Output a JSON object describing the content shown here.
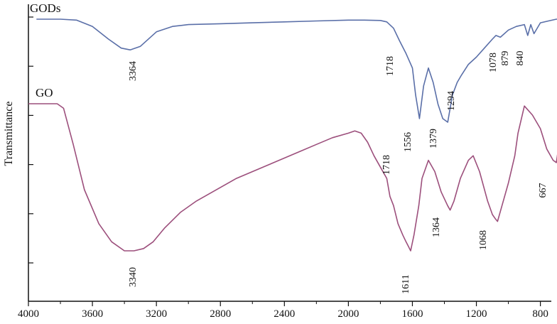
{
  "chart_data": {
    "type": "line",
    "title": "",
    "xlabel": "",
    "ylabel": "Transmittance",
    "xlim": [
      4000,
      650
    ],
    "x_reversed": true,
    "x_ticks": [
      "4000",
      "3600",
      "3200",
      "2800",
      "2400",
      "2000",
      "1600",
      "1200",
      "800"
    ],
    "x_tick_values": [
      4000,
      3600,
      3200,
      2800,
      2400,
      2000,
      1600,
      1200,
      800
    ],
    "y_tick_count": 6,
    "grid": false,
    "series": [
      {
        "name": "GODs",
        "color": "#5a6fa8",
        "x": [
          3950,
          3800,
          3700,
          3600,
          3500,
          3420,
          3364,
          3300,
          3200,
          3100,
          3000,
          2800,
          2600,
          2400,
          2200,
          2000,
          1900,
          1800,
          1760,
          1718,
          1680,
          1640,
          1600,
          1580,
          1556,
          1530,
          1500,
          1470,
          1440,
          1410,
          1379,
          1350,
          1320,
          1294,
          1250,
          1200,
          1150,
          1100,
          1078,
          1050,
          1000,
          950,
          900,
          879,
          860,
          840,
          800,
          750,
          700,
          680
        ],
        "y": [
          97,
          97,
          96.5,
          93,
          86,
          81,
          80,
          82,
          90,
          93,
          94,
          94.5,
          95,
          95.5,
          96,
          96.5,
          96.5,
          96.3,
          95.5,
          92,
          85,
          78,
          70,
          55,
          42,
          60,
          70,
          62,
          50,
          42,
          40,
          55,
          62,
          66,
          72,
          76,
          81,
          86,
          88,
          87,
          91,
          93,
          94,
          88,
          94,
          89,
          95,
          96,
          97,
          97
        ]
      },
      {
        "name": "GO",
        "color": "#9c4f7c",
        "x": [
          4000,
          3900,
          3820,
          3780,
          3720,
          3650,
          3560,
          3480,
          3400,
          3340,
          3280,
          3220,
          3150,
          3050,
          2950,
          2850,
          2700,
          2500,
          2300,
          2200,
          2100,
          2000,
          1960,
          1920,
          1880,
          1840,
          1800,
          1760,
          1740,
          1718,
          1690,
          1660,
          1640,
          1625,
          1611,
          1590,
          1560,
          1540,
          1500,
          1460,
          1420,
          1380,
          1364,
          1340,
          1300,
          1250,
          1220,
          1180,
          1130,
          1100,
          1080,
          1068,
          1040,
          1000,
          960,
          940,
          900,
          850,
          800,
          760,
          720,
          700,
          690,
          680,
          667
        ],
        "y": [
          83,
          83,
          83,
          81,
          65,
          45,
          30,
          22,
          18,
          18,
          19,
          22,
          28,
          35,
          40,
          44,
          50,
          56,
          62,
          65,
          68,
          70,
          71,
          70,
          66,
          60,
          55,
          50,
          42,
          38,
          30,
          25,
          22,
          20,
          18,
          25,
          38,
          50,
          58,
          53,
          44,
          38,
          36,
          40,
          50,
          58,
          60,
          53,
          40,
          34,
          32,
          31,
          38,
          48,
          60,
          70,
          82,
          78,
          72,
          63,
          58,
          57,
          62,
          75,
          83
        ]
      }
    ],
    "annotations": [
      {
        "series": "GODs",
        "label": "3364"
      },
      {
        "series": "GODs",
        "label": "1718"
      },
      {
        "series": "GODs",
        "label": "1556"
      },
      {
        "series": "GODs",
        "label": "1379"
      },
      {
        "series": "GODs",
        "label": "1294"
      },
      {
        "series": "GODs",
        "label": "1078"
      },
      {
        "series": "GODs",
        "label": "879"
      },
      {
        "series": "GODs",
        "label": "840"
      },
      {
        "series": "GO",
        "label": "3340"
      },
      {
        "series": "GO",
        "label": "1718"
      },
      {
        "series": "GO",
        "label": "1611"
      },
      {
        "series": "GO",
        "label": "1364"
      },
      {
        "series": "GO",
        "label": "1068"
      },
      {
        "series": "GO",
        "label": "667"
      }
    ]
  }
}
